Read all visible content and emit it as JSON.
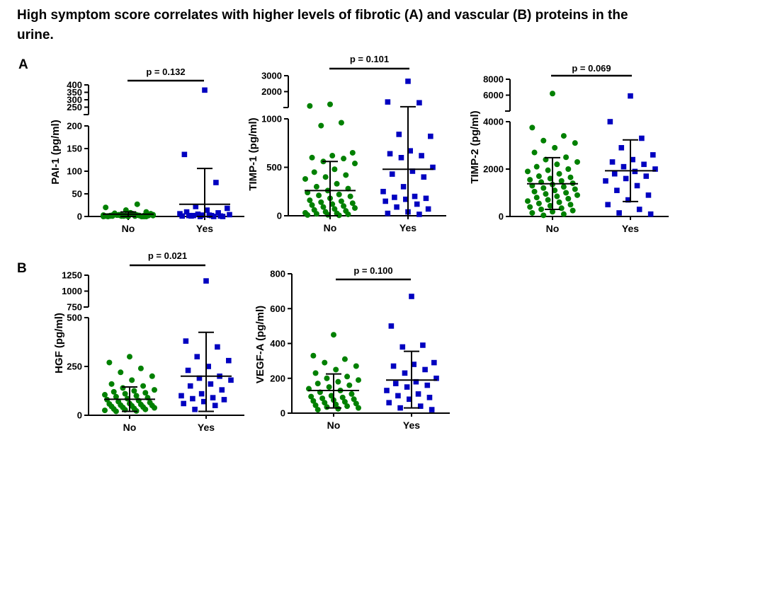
{
  "title": "High symptom score correlates with higher levels of fibrotic (A) and vascular (B) proteins in the urine.",
  "panels": [
    {
      "label": "A"
    },
    {
      "label": "B"
    }
  ],
  "colors": {
    "no_group": "#008000",
    "yes_group": "#0000C0",
    "axis": "#000000"
  },
  "chart_data": [
    {
      "type": "scatter",
      "panel": "A",
      "ylabel": "PAI-1 (pg/ml)",
      "categories": [
        "No",
        "Yes"
      ],
      "p_value": "p = 0.132",
      "broken_axis": true,
      "lower_ylim": [
        0,
        200
      ],
      "upper_ylim": [
        200,
        400
      ],
      "yticks_lower": [
        "0",
        "50",
        "100",
        "150",
        "200"
      ],
      "yticks_upper": [
        "200",
        "250",
        "300",
        "350",
        "400"
      ],
      "series": [
        {
          "group": "No",
          "marker": "circle",
          "mean": 5,
          "sd_low": 0,
          "sd_high": 10,
          "values": [
            0,
            1,
            2,
            3,
            5,
            8,
            2,
            0,
            1,
            4,
            6,
            3,
            2,
            1,
            0,
            5,
            7,
            10,
            14,
            20,
            27,
            3,
            2,
            1,
            0,
            2,
            4,
            6,
            8,
            1,
            0,
            3,
            2,
            5,
            1,
            0,
            2,
            3,
            1,
            4,
            0,
            2,
            1,
            3
          ]
        },
        {
          "group": "Yes",
          "marker": "square",
          "mean": 27,
          "sd_low": 0,
          "sd_high": 106,
          "values": [
            365,
            137,
            75,
            22,
            18,
            14,
            10,
            8,
            5,
            4,
            3,
            2,
            1,
            0,
            6,
            2,
            1,
            0,
            3,
            1,
            0,
            2
          ]
        }
      ]
    },
    {
      "type": "scatter",
      "panel": "A",
      "ylabel": "TIMP-1 (pg/ml)",
      "categories": [
        "No",
        "Yes"
      ],
      "p_value": "p = 0.101",
      "broken_axis": true,
      "lower_ylim": [
        0,
        1000
      ],
      "upper_ylim": [
        1000,
        3000
      ],
      "yticks_lower": [
        "0",
        "500",
        "1000"
      ],
      "yticks_upper": [
        "1000",
        "2000",
        "3000"
      ],
      "series": [
        {
          "group": "No",
          "marker": "circle",
          "mean": 260,
          "sd_low": 0,
          "sd_high": 560,
          "values": [
            1200,
            1100,
            960,
            930,
            650,
            620,
            600,
            590,
            560,
            540,
            480,
            450,
            420,
            400,
            380,
            330,
            300,
            280,
            260,
            240,
            220,
            210,
            200,
            180,
            160,
            150,
            140,
            130,
            120,
            110,
            100,
            90,
            80,
            70,
            60,
            50,
            40,
            30,
            25,
            20,
            15,
            10,
            8,
            5
          ]
        },
        {
          "group": "Yes",
          "marker": "square",
          "mean": 480,
          "sd_low": 0,
          "sd_high": 1050,
          "values": [
            2650,
            1350,
            1300,
            840,
            820,
            670,
            640,
            620,
            600,
            500,
            460,
            430,
            400,
            300,
            250,
            200,
            190,
            180,
            170,
            150,
            120,
            90,
            70,
            40,
            25,
            15
          ]
        }
      ]
    },
    {
      "type": "scatter",
      "panel": "A",
      "ylabel": "TIMP-2 (pg/ml)",
      "categories": [
        "No",
        "Yes"
      ],
      "p_value": "p = 0.069",
      "broken_axis": true,
      "lower_ylim": [
        0,
        4000
      ],
      "upper_ylim": [
        4000,
        8000
      ],
      "yticks_lower": [
        "0",
        "2000",
        "4000"
      ],
      "yticks_upper": [
        "4000",
        "6000",
        "8000"
      ],
      "series": [
        {
          "group": "No",
          "marker": "circle",
          "mean": 1380,
          "sd_low": 300,
          "sd_high": 2480,
          "values": [
            6200,
            3750,
            3400,
            3200,
            3100,
            2900,
            2700,
            2500,
            2400,
            2300,
            2200,
            2100,
            2000,
            1950,
            1900,
            1800,
            1700,
            1650,
            1600,
            1550,
            1500,
            1450,
            1400,
            1350,
            1300,
            1250,
            1200,
            1150,
            1100,
            1050,
            1000,
            950,
            900,
            850,
            800,
            750,
            700,
            650,
            600,
            550,
            500,
            450,
            400,
            350,
            300,
            250,
            200,
            150,
            100,
            50
          ]
        },
        {
          "group": "Yes",
          "marker": "square",
          "mean": 1930,
          "sd_low": 630,
          "sd_high": 3230,
          "values": [
            5900,
            4000,
            3300,
            2900,
            2600,
            2400,
            2300,
            2200,
            2100,
            2000,
            1900,
            1800,
            1700,
            1600,
            1500,
            1300,
            1100,
            900,
            700,
            500,
            300,
            150,
            100
          ]
        }
      ]
    },
    {
      "type": "scatter",
      "panel": "B",
      "ylabel": "HGF (pg/ml)",
      "categories": [
        "No",
        "Yes"
      ],
      "p_value": "p = 0.021",
      "broken_axis": true,
      "lower_ylim": [
        0,
        500
      ],
      "upper_ylim": [
        750,
        1250
      ],
      "yticks_lower": [
        "0",
        "250",
        "500"
      ],
      "yticks_upper": [
        "750",
        "1000",
        "1250"
      ],
      "series": [
        {
          "group": "No",
          "marker": "circle",
          "mean": 82,
          "sd_low": 20,
          "sd_high": 145,
          "values": [
            300,
            270,
            240,
            220,
            200,
            180,
            160,
            150,
            140,
            130,
            125,
            120,
            115,
            110,
            105,
            100,
            95,
            90,
            85,
            80,
            75,
            70,
            65,
            60,
            58,
            55,
            52,
            50,
            48,
            45,
            42,
            40,
            38,
            35,
            32,
            30,
            28,
            25,
            22,
            20
          ]
        },
        {
          "group": "Yes",
          "marker": "square",
          "mean": 200,
          "sd_low": 20,
          "sd_high": 425,
          "values": [
            1160,
            380,
            350,
            300,
            280,
            250,
            230,
            200,
            190,
            180,
            160,
            150,
            130,
            110,
            100,
            90,
            85,
            80,
            70,
            60,
            50,
            30
          ]
        }
      ]
    },
    {
      "type": "scatter",
      "panel": "B",
      "ylabel": "VEGF-A (pg/ml)",
      "categories": [
        "No",
        "Yes"
      ],
      "p_value": "p = 0.100",
      "broken_axis": false,
      "ylim": [
        0,
        800
      ],
      "yticks": [
        "0",
        "200",
        "400",
        "600",
        "800"
      ],
      "series": [
        {
          "group": "No",
          "marker": "circle",
          "mean": 130,
          "sd_low": 30,
          "sd_high": 225,
          "values": [
            450,
            330,
            310,
            290,
            270,
            250,
            230,
            210,
            200,
            190,
            180,
            170,
            160,
            150,
            140,
            130,
            120,
            110,
            100,
            95,
            90,
            85,
            80,
            75,
            70,
            65,
            60,
            55,
            50,
            45,
            40,
            35,
            30,
            25,
            20
          ]
        },
        {
          "group": "Yes",
          "marker": "square",
          "mean": 190,
          "sd_low": 30,
          "sd_high": 355,
          "values": [
            670,
            500,
            390,
            380,
            290,
            280,
            270,
            250,
            230,
            200,
            180,
            170,
            160,
            150,
            130,
            110,
            100,
            90,
            80,
            60,
            40,
            30,
            20
          ]
        }
      ]
    }
  ]
}
